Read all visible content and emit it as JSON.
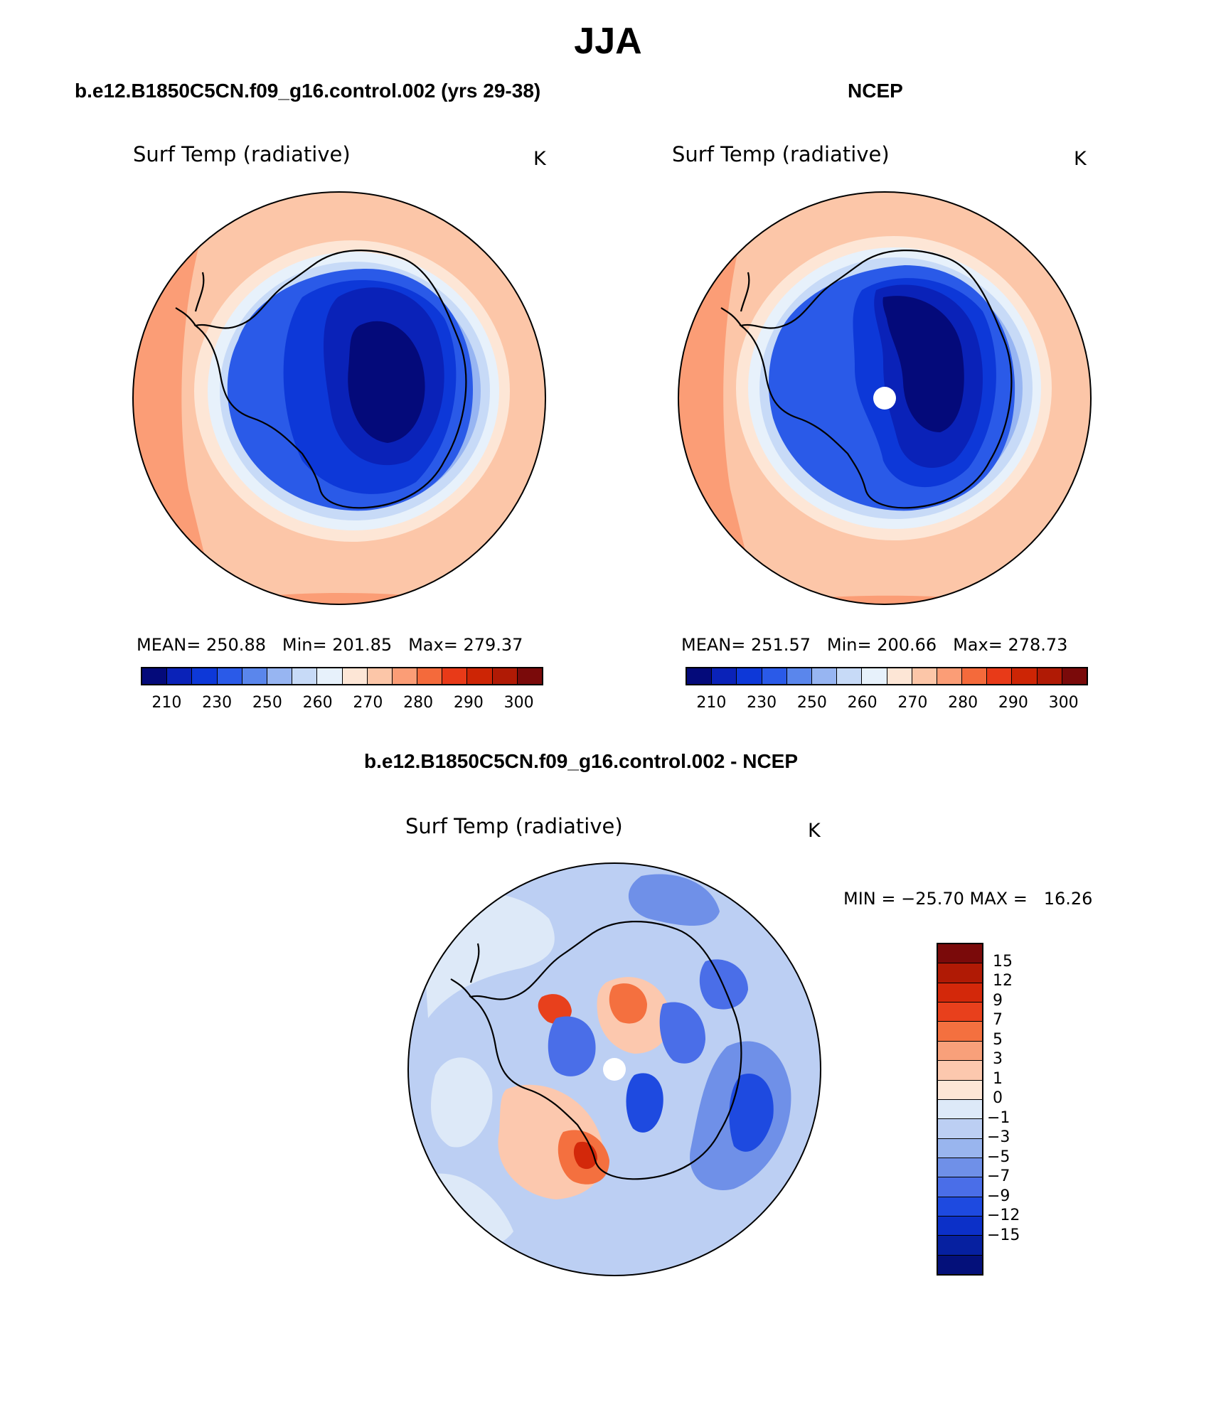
{
  "figure": {
    "season": "JJA",
    "panels": [
      {
        "title": "b.e12.B1850C5CN.f09_g16.control.002 (yrs 29-38)",
        "variable": "Surf Temp (radiative)",
        "units": "K",
        "stats": {
          "mean_label": "MEAN=",
          "mean": "250.88",
          "min_label": "Min=",
          "min": "201.85",
          "max_label": "Max=",
          "max": "279.37"
        }
      },
      {
        "title": "NCEP",
        "variable": "Surf Temp (radiative)",
        "units": "K",
        "stats": {
          "mean_label": "MEAN=",
          "mean": "251.57",
          "min_label": "Min=",
          "min": "200.66",
          "max_label": "Max=",
          "max": "278.73"
        }
      },
      {
        "title": "b.e12.B1850C5CN.f09_g16.control.002 - NCEP",
        "variable": "Surf Temp (radiative)",
        "units": "K",
        "stats_text": "MIN = −25.70 MAX =   16.26"
      }
    ]
  },
  "colorbars": {
    "absolute": {
      "colors": [
        "#040a7a",
        "#0a22b8",
        "#0d38d8",
        "#2a5ae8",
        "#5a86ec",
        "#97b5f2",
        "#c7daf7",
        "#e7f1fb",
        "#fde6d6",
        "#fcc6a8",
        "#fb9d76",
        "#f46a3b",
        "#e83a18",
        "#cd2505",
        "#b01a05",
        "#7a0a0a"
      ],
      "tick_labels": [
        "210",
        "230",
        "250",
        "260",
        "270",
        "280",
        "290",
        "300"
      ]
    },
    "difference": {
      "colors": [
        "#7a0a0a",
        "#b01a05",
        "#d3280a",
        "#e8401c",
        "#f4703f",
        "#f8a07a",
        "#fcc8ae",
        "#fde6d6",
        "#dde9f8",
        "#bccff3",
        "#99b5ee",
        "#6f90e8",
        "#4a6ee8",
        "#1e4ae0",
        "#0c30c8",
        "#0620a0",
        "#04107a"
      ],
      "labels": [
        "15",
        "12",
        "9",
        "7",
        "5",
        "3",
        "1",
        "0",
        "−1",
        "−3",
        "−5",
        "−7",
        "−9",
        "−12",
        "−15"
      ]
    }
  },
  "chart_data": [
    {
      "type": "heatmap",
      "projection": "south-polar-stereographic",
      "title": "b.e12.B1850C5CN.f09_g16.control.002 (yrs 29-38)",
      "field": "Surf Temp (radiative)",
      "units": "K",
      "contour_levels": [
        210,
        220,
        230,
        240,
        250,
        255,
        260,
        265,
        270,
        275,
        280,
        285,
        290,
        295,
        300
      ],
      "mean": 250.88,
      "min": 201.85,
      "max": 279.37
    },
    {
      "type": "heatmap",
      "projection": "south-polar-stereographic",
      "title": "NCEP",
      "field": "Surf Temp (radiative)",
      "units": "K",
      "contour_levels": [
        210,
        220,
        230,
        240,
        250,
        255,
        260,
        265,
        270,
        275,
        280,
        285,
        290,
        295,
        300
      ],
      "mean": 251.57,
      "min": 200.66,
      "max": 278.73
    },
    {
      "type": "heatmap",
      "projection": "south-polar-stereographic",
      "title": "b.e12.B1850C5CN.f09_g16.control.002 - NCEP",
      "field": "Surf Temp (radiative)",
      "units": "K",
      "contour_levels": [
        -15,
        -12,
        -9,
        -7,
        -5,
        -3,
        -1,
        0,
        1,
        3,
        5,
        7,
        9,
        12,
        15
      ],
      "min": -25.7,
      "max": 16.26
    }
  ]
}
